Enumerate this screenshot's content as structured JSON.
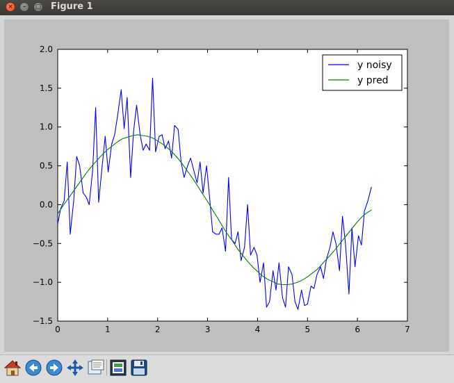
{
  "window": {
    "title": "Figure 1"
  },
  "window_buttons": {
    "close": "×",
    "minimize": "–",
    "maximize": "□"
  },
  "toolbar": {
    "buttons": [
      {
        "name": "home",
        "icon": "home-icon"
      },
      {
        "name": "back",
        "icon": "arrow-left-icon"
      },
      {
        "name": "forward",
        "icon": "arrow-right-icon"
      },
      {
        "name": "pan",
        "icon": "move-icon"
      },
      {
        "name": "zoom",
        "icon": "zoom-rect-icon"
      },
      {
        "name": "subplots",
        "icon": "subplots-icon"
      },
      {
        "name": "save",
        "icon": "save-icon"
      }
    ]
  },
  "colors": {
    "noisy": "#0000ff",
    "pred": "#008000"
  },
  "chart_data": {
    "type": "line",
    "xlim": [
      0,
      7
    ],
    "ylim": [
      -1.5,
      2.0
    ],
    "xticks": [
      0,
      1,
      2,
      3,
      4,
      5,
      6,
      7
    ],
    "yticks": [
      -1.5,
      -1.0,
      -0.5,
      0.0,
      0.5,
      1.0,
      1.5,
      2.0
    ],
    "ytick_labels": [
      "−1.5",
      "−1.0",
      "−0.5",
      "0.0",
      "0.5",
      "1.0",
      "1.5",
      "2.0"
    ],
    "legend_position": "top-right",
    "legend": [
      "y noisy",
      "y pred"
    ],
    "series": [
      {
        "name": "y noisy",
        "x": [
          0.0,
          0.06,
          0.13,
          0.19,
          0.25,
          0.32,
          0.38,
          0.44,
          0.51,
          0.57,
          0.63,
          0.7,
          0.76,
          0.82,
          0.89,
          0.95,
          1.01,
          1.08,
          1.14,
          1.2,
          1.27,
          1.33,
          1.39,
          1.46,
          1.52,
          1.58,
          1.65,
          1.71,
          1.77,
          1.84,
          1.9,
          1.96,
          2.03,
          2.09,
          2.15,
          2.22,
          2.28,
          2.34,
          2.41,
          2.47,
          2.53,
          2.6,
          2.66,
          2.72,
          2.79,
          2.85,
          2.91,
          2.98,
          3.04,
          3.1,
          3.17,
          3.23,
          3.29,
          3.36,
          3.42,
          3.48,
          3.55,
          3.61,
          3.67,
          3.74,
          3.8,
          3.86,
          3.93,
          3.99,
          4.05,
          4.12,
          4.18,
          4.24,
          4.31,
          4.37,
          4.43,
          4.5,
          4.56,
          4.62,
          4.69,
          4.75,
          4.81,
          4.88,
          4.94,
          5.0,
          5.07,
          5.13,
          5.19,
          5.26,
          5.32,
          5.38,
          5.45,
          5.51,
          5.57,
          5.64,
          5.7,
          5.76,
          5.83,
          5.89,
          5.95,
          6.02,
          6.08,
          6.14,
          6.21,
          6.28
        ],
        "y": [
          -0.25,
          -0.05,
          0.05,
          0.55,
          -0.38,
          0.05,
          0.62,
          0.5,
          0.15,
          0.1,
          0.0,
          0.45,
          1.25,
          0.03,
          0.5,
          0.88,
          0.42,
          0.78,
          0.9,
          1.15,
          1.48,
          0.98,
          1.38,
          0.35,
          0.95,
          1.28,
          0.9,
          0.7,
          0.78,
          0.7,
          1.63,
          0.68,
          0.88,
          0.9,
          0.72,
          0.82,
          0.6,
          1.02,
          0.97,
          0.55,
          0.35,
          0.5,
          0.6,
          0.45,
          0.28,
          0.55,
          0.15,
          0.5,
          0.1,
          -0.35,
          -0.38,
          -0.38,
          -0.3,
          -0.6,
          0.35,
          -0.45,
          -0.5,
          -0.35,
          -0.72,
          -0.55,
          0.0,
          -0.65,
          -0.55,
          -0.65,
          -1.0,
          -0.75,
          -1.32,
          -1.25,
          -0.85,
          -1.1,
          -0.75,
          -1.2,
          -1.32,
          -0.8,
          -0.9,
          -1.25,
          -1.35,
          -1.1,
          -1.3,
          -1.28,
          -1.05,
          -1.08,
          -0.9,
          -0.8,
          -0.95,
          -0.7,
          -0.55,
          -0.35,
          -0.5,
          -0.85,
          -0.15,
          -0.5,
          -1.15,
          -0.3,
          -0.8,
          -0.4,
          -0.52,
          -0.08,
          0.05,
          0.23
        ]
      },
      {
        "name": "y pred",
        "x": [
          0.0,
          0.1,
          0.2,
          0.3,
          0.4,
          0.5,
          0.6,
          0.7,
          0.8,
          0.9,
          1.0,
          1.1,
          1.2,
          1.3,
          1.4,
          1.5,
          1.6,
          1.7,
          1.8,
          1.9,
          2.0,
          2.1,
          2.2,
          2.3,
          2.4,
          2.5,
          2.6,
          2.7,
          2.8,
          2.9,
          3.0,
          3.1,
          3.2,
          3.3,
          3.4,
          3.5,
          3.6,
          3.7,
          3.8,
          3.9,
          4.0,
          4.1,
          4.2,
          4.3,
          4.4,
          4.5,
          4.6,
          4.7,
          4.8,
          4.9,
          5.0,
          5.1,
          5.2,
          5.3,
          5.4,
          5.5,
          5.6,
          5.7,
          5.8,
          5.9,
          6.0,
          6.1,
          6.2,
          6.28
        ],
        "y": [
          -0.12,
          -0.02,
          0.07,
          0.16,
          0.25,
          0.34,
          0.43,
          0.51,
          0.58,
          0.65,
          0.71,
          0.76,
          0.81,
          0.85,
          0.87,
          0.89,
          0.9,
          0.89,
          0.88,
          0.86,
          0.82,
          0.78,
          0.73,
          0.67,
          0.6,
          0.52,
          0.43,
          0.34,
          0.24,
          0.14,
          0.04,
          -0.07,
          -0.17,
          -0.28,
          -0.38,
          -0.47,
          -0.57,
          -0.65,
          -0.73,
          -0.8,
          -0.86,
          -0.92,
          -0.96,
          -0.99,
          -1.02,
          -1.03,
          -1.03,
          -1.02,
          -1.0,
          -0.97,
          -0.93,
          -0.88,
          -0.83,
          -0.76,
          -0.69,
          -0.62,
          -0.54,
          -0.46,
          -0.38,
          -0.3,
          -0.22,
          -0.15,
          -0.1,
          -0.07
        ]
      }
    ]
  }
}
